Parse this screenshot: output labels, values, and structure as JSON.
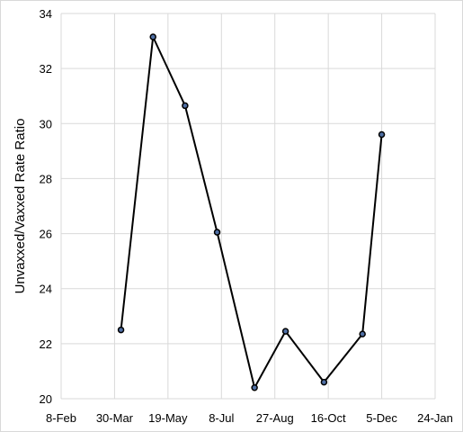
{
  "chart_data": {
    "type": "line",
    "title": "",
    "xlabel": "",
    "ylabel": "Unvaxxed/Vaxxed Rate Ratio",
    "x_tick_labels": [
      "8-Feb",
      "30-Mar",
      "19-May",
      "8-Jul",
      "27-Aug",
      "16-Oct",
      "5-Dec",
      "24-Jan"
    ],
    "y_ticks": [
      20,
      22,
      24,
      26,
      28,
      30,
      32,
      34
    ],
    "ylim": [
      20,
      34
    ],
    "grid": true,
    "series": [
      {
        "x": [
          "2021-04-05",
          "2021-05-05",
          "2021-06-04",
          "2021-07-04",
          "2021-08-08",
          "2021-09-06",
          "2021-10-12",
          "2021-11-17",
          "2021-12-05"
        ],
        "values": [
          22.5,
          33.15,
          30.65,
          26.05,
          20.4,
          22.45,
          20.6,
          22.35,
          29.6
        ]
      }
    ]
  },
  "colors": {
    "line": "#000000",
    "marker_fill": "#4f6fa5",
    "grid": "#d9d9d9"
  }
}
